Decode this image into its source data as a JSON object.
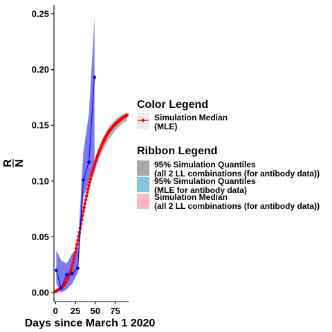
{
  "chart_data": {
    "type": "line",
    "xlabel": "Days since March 1 2020",
    "ylabel_numerator": "R",
    "ylabel_denominator": "N",
    "xlim": [
      -2,
      92
    ],
    "ylim": [
      -0.008,
      0.258
    ],
    "x_ticks": [
      0,
      25,
      50,
      75
    ],
    "y_ticks": [
      0.0,
      0.05,
      0.1,
      0.15,
      0.2,
      0.25
    ],
    "x_tick_labels": [
      "0",
      "25",
      "50",
      "75"
    ],
    "y_tick_labels": [
      "0.00",
      "0.05",
      "0.10",
      "0.15",
      "0.20",
      "0.25"
    ],
    "grid": false,
    "legend_position": "right",
    "colors": {
      "observed": "#0000ff",
      "observed_ribbon": "#7b79f0",
      "median_line": "#ff0000",
      "quantile_ribbon": "#a8a8a8",
      "mle_ribbon": "#80c4e6",
      "median_ribbon": "#ffb6c1"
    },
    "observed": {
      "x": [
        1,
        7,
        14,
        21,
        28,
        35,
        42,
        49
      ],
      "y": [
        0.02,
        0.004,
        0.016,
        0.017,
        0.022,
        0.101,
        0.117,
        0.193
      ],
      "ribbon_lower": [
        0.008,
        0.0,
        0.003,
        0.008,
        0.018,
        0.085,
        0.1,
        0.12
      ],
      "ribbon_upper": [
        0.038,
        0.029,
        0.026,
        0.035,
        0.04,
        0.126,
        0.16,
        0.246
      ]
    },
    "simulation_median": {
      "x": [
        0,
        5,
        10,
        15,
        20,
        25,
        30,
        35,
        40,
        45,
        50,
        55,
        60,
        65,
        70,
        75,
        80,
        85,
        90
      ],
      "y": [
        0.001,
        0.003,
        0.006,
        0.012,
        0.021,
        0.036,
        0.054,
        0.073,
        0.09,
        0.105,
        0.117,
        0.127,
        0.135,
        0.142,
        0.147,
        0.151,
        0.154,
        0.157,
        0.159
      ],
      "ribbon_lower": [
        0.0,
        0.002,
        0.005,
        0.01,
        0.019,
        0.033,
        0.05,
        0.069,
        0.085,
        0.099,
        0.11,
        0.12,
        0.128,
        0.135,
        0.14,
        0.145,
        0.149,
        0.152,
        0.154
      ],
      "ribbon_upper": [
        0.002,
        0.004,
        0.007,
        0.014,
        0.023,
        0.039,
        0.058,
        0.077,
        0.094,
        0.109,
        0.121,
        0.131,
        0.139,
        0.146,
        0.151,
        0.155,
        0.158,
        0.16,
        0.162
      ]
    }
  },
  "legend": {
    "color_title": "Color  Legend",
    "color_items": [
      {
        "line1": "Simulation Median",
        "line2": " (MLE)"
      }
    ],
    "ribbon_title": "Ribbon  Legend",
    "ribbon_items": [
      {
        "line1": "95% Simulation Quantiles",
        "line2": " (all 2 LL combinations (for antibody data))",
        "color": "#a8a8a8"
      },
      {
        "line1": "95% Simulation Quantiles",
        "line2": " (MLE for antibody data)",
        "color": "#80c4e6"
      },
      {
        "line1": "Simulation Median",
        "line2": "  (all 2 LL combinations (for antibody data))",
        "color": "#ffb6c1"
      }
    ]
  }
}
